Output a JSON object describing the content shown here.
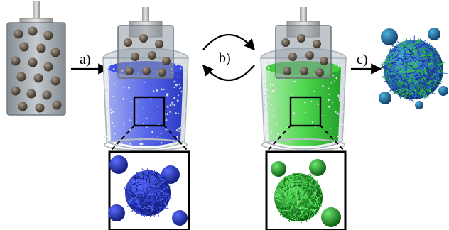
{
  "steps": [
    {
      "label": "a)"
    },
    {
      "label": "b)"
    },
    {
      "label": "c)"
    }
  ],
  "colors": {
    "blue_bath": "#2f45e0",
    "green_bath": "#22c72a",
    "particle": "#5a4e40",
    "steel": "#c9c9c9",
    "glass": "#b9c3cc",
    "blue_particle": "#1f2fb8",
    "green_particle": "#1f9a2a",
    "teal_particle": "#2f7fa8"
  }
}
